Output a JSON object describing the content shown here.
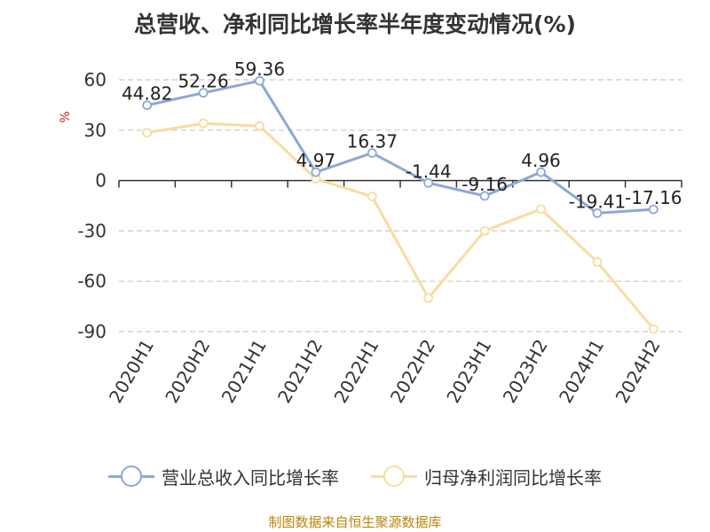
{
  "chart_data": {
    "type": "line",
    "title": "总营收、净利同比增长率半年度变动情况(%)",
    "ylabel": "%",
    "categories": [
      "2020H1",
      "2020H2",
      "2021H1",
      "2021H2",
      "2022H1",
      "2022H2",
      "2023H1",
      "2023H2",
      "2024H1",
      "2024H2"
    ],
    "ylim": [
      -90,
      60
    ],
    "yticks": [
      60,
      30,
      0,
      -30,
      -60,
      -90
    ],
    "grid": true,
    "legend_position": "bottom",
    "series": [
      {
        "name": "营业总收入同比增长率",
        "color": "#8BA8D8",
        "values": [
          44.82,
          52.26,
          59.36,
          4.97,
          16.37,
          -1.44,
          -9.16,
          4.96,
          -19.41,
          -17.16
        ],
        "labels": [
          "44.82",
          "52.26",
          "59.36",
          "4.97",
          "16.37",
          "-1.44",
          "-9.16",
          "4.96",
          "-19.41",
          "-17.16"
        ]
      },
      {
        "name": "归母净利润同比增长率",
        "color": "#F8DCA0",
        "values": [
          28.5,
          34,
          32.5,
          1,
          -9.5,
          -70,
          -30,
          -17,
          -48.5,
          -88.5
        ]
      }
    ]
  },
  "source_note": "制图数据来自恒生聚源数据库"
}
